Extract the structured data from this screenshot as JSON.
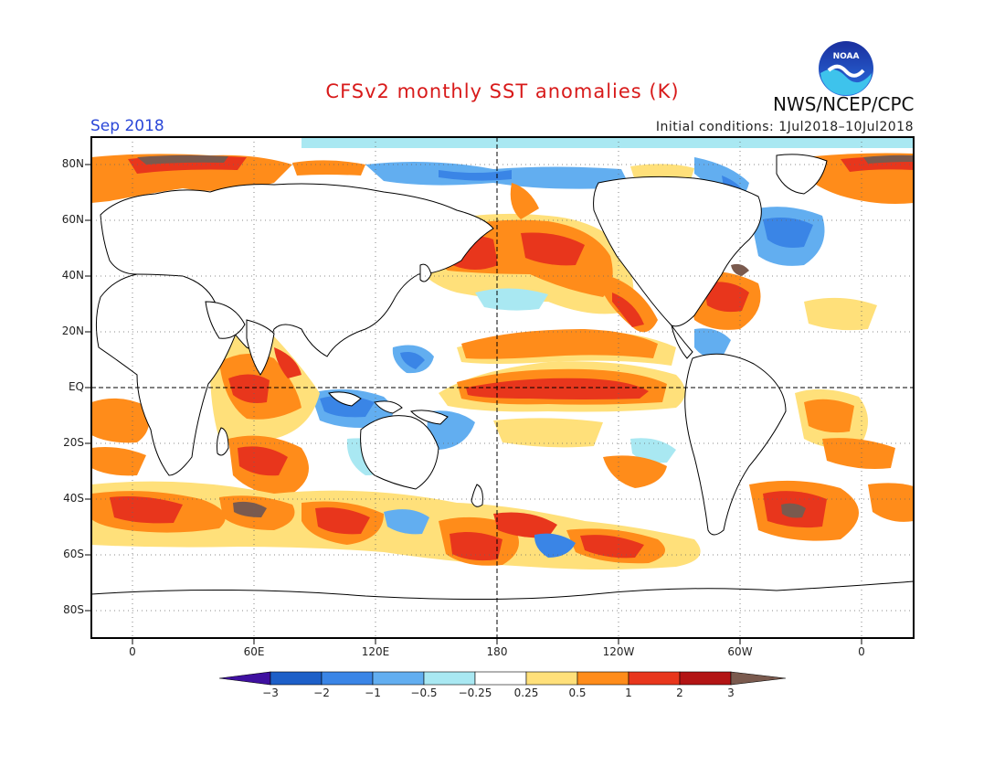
{
  "title": "CFSv2 monthly SST anomalies (K)",
  "agency": "NWS/NCEP/CPC",
  "logo_text": "NOAA",
  "valid_month": "Sep 2018",
  "initial_conditions": "Initial conditions: 1Jul2018–10Jul2018",
  "lat_labels": [
    "80N",
    "60N",
    "40N",
    "20N",
    "EQ",
    "20S",
    "40S",
    "60S",
    "80S"
  ],
  "lon_labels": [
    "0",
    "60E",
    "120E",
    "180",
    "120W",
    "60W",
    "0"
  ],
  "colorbar": {
    "levels": [
      "−3",
      "−2",
      "−1",
      "−0.5",
      "−0.25",
      "0.25",
      "0.5",
      "1",
      "2",
      "3"
    ],
    "colors": [
      "#3f10a0",
      "#1d5fc8",
      "#3a85e6",
      "#62aef0",
      "#a9e8f2",
      "#ffffff",
      "#ffe07a",
      "#ff8c1a",
      "#e8361c",
      "#b31414",
      "#7a5a4e"
    ]
  },
  "colors": {
    "title": "#d81a1a",
    "month": "#2a47d8",
    "warm_strong": "#e8361c",
    "warm": "#ff8c1a",
    "warm_weak": "#ffe07a",
    "cool_weak": "#a9e8f2",
    "cool": "#62aef0",
    "cool_strong": "#3a85e6",
    "extreme_warm": "#7a5a4e"
  }
}
